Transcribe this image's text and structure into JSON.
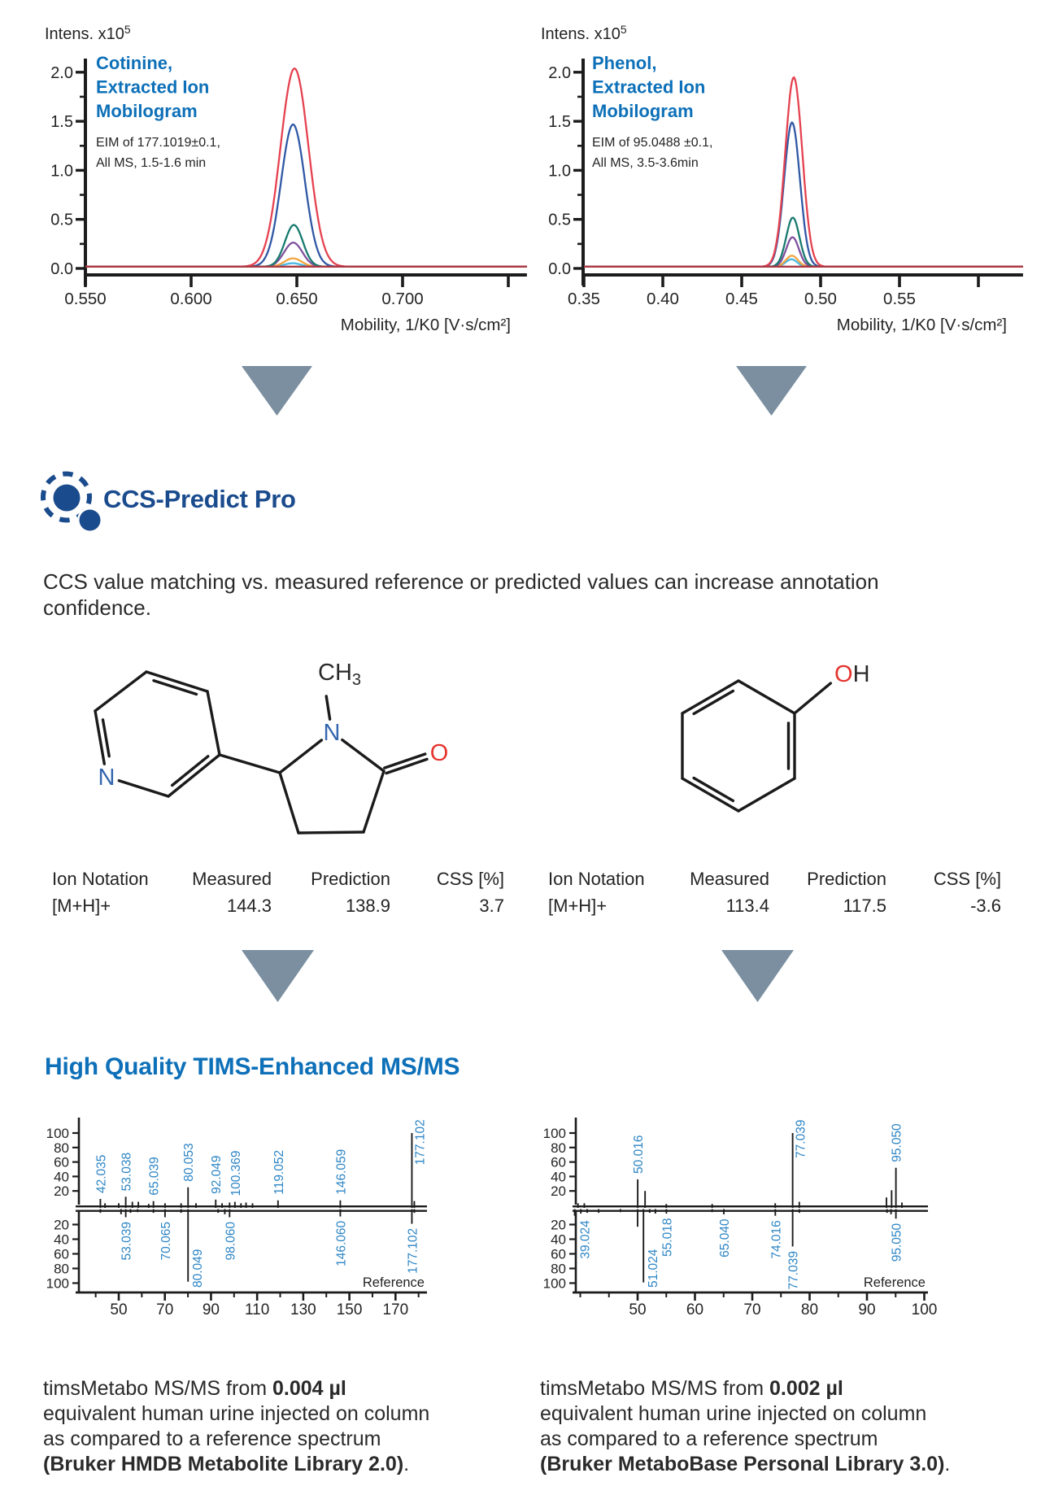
{
  "palette": {
    "heading_blue": "#0d70b8",
    "logo_navy": "#1a4b8d",
    "peak_label_blue": "#2e86c5",
    "triangle_gray": "#7b8fa0",
    "axis_black": "#1c1c1c",
    "text_black": "#2a2a2a",
    "atom_n_blue": "#3467ae",
    "atom_o_red": "#e5332d",
    "trace_red": "#e54250",
    "trace_blue": "#3058a5",
    "trace_teal": "#177a6e",
    "trace_purple": "#80519e",
    "trace_orange": "#f2a541",
    "trace_cyan": "#49b9e5",
    "trace_maroon": "#a93a44"
  },
  "logo": {
    "title": "CCS-Predict Pro"
  },
  "intro": {
    "text": "CCS value matching vs. measured reference or predicted values can increase annotation confidence."
  },
  "section": {
    "heading": "High Quality TIMS-Enhanced MS/MS"
  },
  "molecules": {
    "cotinine": {
      "methyl": "CH",
      "methyl_sub": "3",
      "ring_n": "N",
      "pyridine_n": "N",
      "carbonyl_o": "O"
    },
    "phenol": {
      "hydroxyl_o": "O",
      "hydroxyl_h": "H"
    }
  },
  "tables": [
    {
      "headers": [
        "Ion Notation",
        "Measured",
        "Prediction",
        "CSS [%]"
      ],
      "row": [
        "[M+H]+",
        "144.3",
        "138.9",
        "3.7"
      ]
    },
    {
      "headers": [
        "Ion Notation",
        "Measured",
        "Prediction",
        "CSS [%]"
      ],
      "row": [
        "[M+H]+",
        "113.4",
        "117.5",
        "-3.6"
      ]
    }
  ],
  "captions": [
    {
      "prefix": "timsMetabo MS/MS from ",
      "bold_amount": "0.004 µl",
      "line2": "equivalent human urine injected on column",
      "line3": "as compared to a reference spectrum",
      "bold_library": "(Bruker HMDB Metabolite Library 2.0)",
      "suffix": "."
    },
    {
      "prefix": "timsMetabo MS/MS from ",
      "bold_amount": "0.002 µl",
      "line2": "equivalent human urine injected on column",
      "line3": "as compared to a reference spectrum",
      "bold_library": "(Bruker MetaboBase Personal Library 3.0)",
      "suffix": "."
    }
  ],
  "chart_data": [
    {
      "type": "line",
      "id": "cotinine-mobilogram",
      "title_lines": [
        "Cotinine,",
        "Extracted Ion",
        "Mobilogram"
      ],
      "eim_lines": [
        "EIM of 177.1019±0.1,",
        "All MS, 1.5-1.6 min"
      ],
      "intens_label": "Intens. x10",
      "intens_exp": "5",
      "xlabel": "Mobility, 1/K0 [V·s/cm²]",
      "xlim": [
        0.55,
        0.7588
      ],
      "ylim": [
        0,
        2.2
      ],
      "x_ticks": [
        {
          "v": 0.55,
          "label": "0.550"
        },
        {
          "v": 0.6,
          "label": "0.600"
        },
        {
          "v": 0.65,
          "label": "0.650"
        },
        {
          "v": 0.7,
          "label": "0.700"
        },
        {
          "v": 0.75,
          "label": ""
        }
      ],
      "y_ticks": [
        {
          "v": 0.0,
          "label": "0.0"
        },
        {
          "v": 0.5,
          "label": "0.5"
        },
        {
          "v": 1.0,
          "label": "1.0"
        },
        {
          "v": 1.5,
          "label": "1.5"
        },
        {
          "v": 2.0,
          "label": "2.0"
        }
      ],
      "y_minor_step": 0.25,
      "baseline": 0.018,
      "series": [
        {
          "name": "trace-cyan",
          "color": "trace_cyan",
          "center": 0.648,
          "sigma": 0.0038,
          "height": 0.035
        },
        {
          "name": "trace-orange",
          "color": "trace_orange",
          "center": 0.6482,
          "sigma": 0.004,
          "height": 0.085
        },
        {
          "name": "trace-purple",
          "color": "trace_purple",
          "center": 0.6483,
          "sigma": 0.0043,
          "height": 0.245
        },
        {
          "name": "trace-teal",
          "color": "trace_teal",
          "center": 0.6486,
          "sigma": 0.0042,
          "height": 0.425
        },
        {
          "name": "trace-blue",
          "color": "trace_blue",
          "center": 0.6482,
          "sigma": 0.0056,
          "height": 1.45
        },
        {
          "name": "trace-red",
          "color": "trace_red",
          "center": 0.6489,
          "sigma": 0.0066,
          "height": 2.02
        },
        {
          "name": "trace-maroon",
          "color": "trace_maroon",
          "center": 0.6489,
          "sigma": 0.0066,
          "height": 0.0
        }
      ]
    },
    {
      "type": "line",
      "id": "phenol-mobilogram",
      "title_lines": [
        "Phenol,",
        "Extracted Ion",
        "Mobilogram"
      ],
      "eim_lines": [
        "EIM of 95.0488 ±0.1,",
        "All MS, 3.5-3.6min"
      ],
      "intens_label": "Intens. x10",
      "intens_exp": "5",
      "xlabel": "Mobility, 1/K0 [V·s/cm²]",
      "xlim": [
        0.35,
        0.6283
      ],
      "ylim": [
        0,
        2.2
      ],
      "x_ticks": [
        {
          "v": 0.35,
          "label": "0.35"
        },
        {
          "v": 0.4,
          "label": "0.40"
        },
        {
          "v": 0.45,
          "label": "0.45"
        },
        {
          "v": 0.5,
          "label": "0.50"
        },
        {
          "v": 0.55,
          "label": "0.55"
        },
        {
          "v": 0.6,
          "label": ""
        }
      ],
      "y_ticks": [
        {
          "v": 0.0,
          "label": "0.0"
        },
        {
          "v": 0.5,
          "label": "0.5"
        },
        {
          "v": 1.0,
          "label": "1.0"
        },
        {
          "v": 1.5,
          "label": "1.5"
        },
        {
          "v": 2.0,
          "label": "2.0"
        }
      ],
      "y_minor_step": 0.25,
      "baseline": 0.018,
      "series": [
        {
          "name": "trace-cyan",
          "color": "trace_cyan",
          "center": 0.4815,
          "sigma": 0.0036,
          "height": 0.075
        },
        {
          "name": "trace-orange",
          "color": "trace_orange",
          "center": 0.4818,
          "sigma": 0.0038,
          "height": 0.112
        },
        {
          "name": "trace-purple",
          "color": "trace_purple",
          "center": 0.4822,
          "sigma": 0.004,
          "height": 0.3
        },
        {
          "name": "trace-teal",
          "color": "trace_teal",
          "center": 0.4824,
          "sigma": 0.0042,
          "height": 0.5
        },
        {
          "name": "trace-blue",
          "color": "trace_blue",
          "center": 0.4819,
          "sigma": 0.005,
          "height": 1.47
        },
        {
          "name": "trace-red",
          "color": "trace_red",
          "center": 0.483,
          "sigma": 0.0054,
          "height": 1.93
        },
        {
          "name": "trace-maroon",
          "color": "trace_maroon",
          "center": 0.483,
          "sigma": 0.0054,
          "height": 0.0
        }
      ]
    },
    {
      "type": "msms-mirror",
      "id": "cotinine-msms",
      "reference_label": "Reference",
      "xlim": [
        32.7,
        183.3
      ],
      "major_ticks": [
        50,
        70,
        90,
        110,
        130,
        150,
        170
      ],
      "minor_step": 10,
      "y_ticks": [
        20,
        40,
        60,
        80,
        100
      ],
      "top_peaks": [
        {
          "mz": 42.035,
          "i": 9,
          "label": "42.035"
        },
        {
          "mz": 44.05,
          "i": 3
        },
        {
          "mz": 50.0,
          "i": 3
        },
        {
          "mz": 53.038,
          "i": 12,
          "label": "53.038"
        },
        {
          "mz": 55.9,
          "i": 5
        },
        {
          "mz": 58.5,
          "i": 5
        },
        {
          "mz": 63.0,
          "i": 2
        },
        {
          "mz": 65.039,
          "i": 6,
          "label": "65.039"
        },
        {
          "mz": 70.07,
          "i": 3
        },
        {
          "mz": 77.04,
          "i": 3
        },
        {
          "mz": 80.053,
          "i": 25,
          "label": "80.053"
        },
        {
          "mz": 83.5,
          "i": 3
        },
        {
          "mz": 92.049,
          "i": 8,
          "label": "92.049"
        },
        {
          "mz": 94.8,
          "i": 3
        },
        {
          "mz": 98.06,
          "i": 4
        },
        {
          "mz": 100.369,
          "i": 5,
          "label": "100.369"
        },
        {
          "mz": 103.0,
          "i": 3
        },
        {
          "mz": 105.2,
          "i": 4
        },
        {
          "mz": 108.0,
          "i": 3
        },
        {
          "mz": 119.052,
          "i": 7,
          "label": "119.052"
        },
        {
          "mz": 146.059,
          "i": 7,
          "label": "146.059"
        },
        {
          "mz": 177.102,
          "i": 100,
          "label": "177.102"
        },
        {
          "mz": 178.15,
          "i": 6
        }
      ],
      "bottom_peaks": [
        {
          "mz": 42.04,
          "i": 4
        },
        {
          "mz": 51.0,
          "i": 6
        },
        {
          "mz": 53.039,
          "i": 10,
          "label": "53.039"
        },
        {
          "mz": 55.1,
          "i": 4
        },
        {
          "mz": 58.2,
          "i": 3
        },
        {
          "mz": 65.05,
          "i": 4
        },
        {
          "mz": 70.065,
          "i": 10,
          "label": "70.065"
        },
        {
          "mz": 77.04,
          "i": 4
        },
        {
          "mz": 80.049,
          "i": 98,
          "label": "80.049"
        },
        {
          "mz": 93.1,
          "i": 4
        },
        {
          "mz": 96.0,
          "i": 6
        },
        {
          "mz": 98.06,
          "i": 10,
          "label": "98.060"
        },
        {
          "mz": 146.06,
          "i": 9,
          "label": "146.060"
        },
        {
          "mz": 177.102,
          "i": 19,
          "label": "177.102"
        },
        {
          "mz": 178.15,
          "i": 4
        }
      ]
    },
    {
      "type": "msms-mirror",
      "id": "phenol-msms",
      "reference_label": "Reference",
      "xlim": [
        39.2,
        100.5
      ],
      "major_ticks": [
        50,
        60,
        70,
        80,
        90,
        100
      ],
      "minor_step": 5,
      "y_ticks": [
        20,
        40,
        60,
        80,
        100
      ],
      "top_peaks": [
        {
          "mz": 39.6,
          "i": 3
        },
        {
          "mz": 40.7,
          "i": 3
        },
        {
          "mz": 50.016,
          "i": 36,
          "label": "50.016"
        },
        {
          "mz": 51.3,
          "i": 20
        },
        {
          "mz": 55.0,
          "i": 2
        },
        {
          "mz": 63.0,
          "i": 2
        },
        {
          "mz": 74.0,
          "i": 3
        },
        {
          "mz": 77.039,
          "i": 100,
          "label": "77.039"
        },
        {
          "mz": 78.2,
          "i": 5
        },
        {
          "mz": 93.4,
          "i": 11
        },
        {
          "mz": 94.3,
          "i": 21
        },
        {
          "mz": 95.05,
          "i": 52,
          "label": "95.050"
        },
        {
          "mz": 96.1,
          "i": 4
        }
      ],
      "bottom_peaks": [
        {
          "mz": 39.024,
          "i": 8,
          "label": "39.024",
          "label_dx": 12
        },
        {
          "mz": 40.1,
          "i": 5
        },
        {
          "mz": 41.2,
          "i": 4
        },
        {
          "mz": 43.2,
          "i": 4
        },
        {
          "mz": 47.0,
          "i": 3
        },
        {
          "mz": 50.0,
          "i": 23
        },
        {
          "mz": 51.024,
          "i": 99,
          "label": "51.024"
        },
        {
          "mz": 52.1,
          "i": 4
        },
        {
          "mz": 53.1,
          "i": 5
        },
        {
          "mz": 55.018,
          "i": 5,
          "label": "55.018"
        },
        {
          "mz": 63.0,
          "i": 3
        },
        {
          "mz": 65.04,
          "i": 6,
          "label": "65.040"
        },
        {
          "mz": 74.016,
          "i": 8,
          "label": "74.016"
        },
        {
          "mz": 77.039,
          "i": 50,
          "label": "77.039"
        },
        {
          "mz": 78.2,
          "i": 4
        },
        {
          "mz": 93.5,
          "i": 4
        },
        {
          "mz": 94.2,
          "i": 6
        },
        {
          "mz": 95.05,
          "i": 12,
          "label": "95.050"
        }
      ]
    }
  ]
}
